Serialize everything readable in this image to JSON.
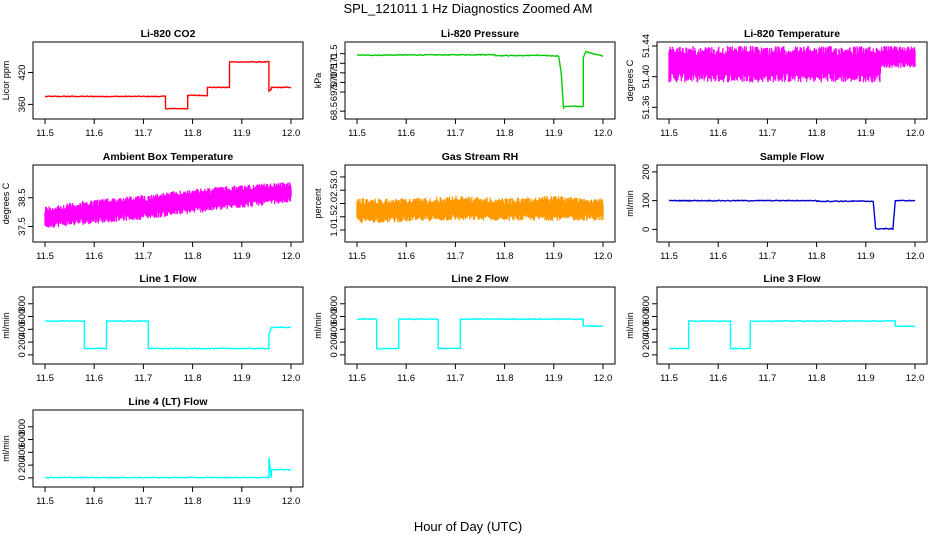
{
  "figure": {
    "title": "SPL_121011  1 Hz Diagnostics Zoomed AM",
    "xlabel": "Hour of Day (UTC)"
  },
  "chart_data": [
    {
      "type": "line",
      "title": "Li-820 CO2",
      "ylabel": "Licor ppm",
      "color": "#ff0000",
      "xlim": [
        11.5,
        12.0
      ],
      "ylim": [
        340,
        470
      ],
      "yticks": [
        "360",
        "420"
      ],
      "xticks": [
        "11.5",
        "11.6",
        "11.7",
        "11.8",
        "11.9",
        "12.0"
      ],
      "series": [
        {
          "x": [
            11.5,
            11.745,
            11.745,
            11.79,
            11.79,
            11.83,
            11.83,
            11.875,
            11.875,
            11.955,
            11.955,
            11.96,
            11.96,
            12.0
          ],
          "y": [
            375,
            375,
            352,
            352,
            377,
            377,
            392,
            392,
            440,
            440,
            385,
            388,
            392,
            392
          ]
        }
      ]
    },
    {
      "type": "line",
      "title": "Li-820 Pressure",
      "ylabel": "kPa",
      "color": "#00cc00",
      "xlim": [
        11.5,
        12.0
      ],
      "ylim": [
        68.3,
        71.9
      ],
      "yticks": [
        "68.5",
        "69.5",
        "70.0",
        "70.5",
        "71.0",
        "71.5"
      ],
      "xticks": [
        "11.5",
        "11.6",
        "11.7",
        "11.8",
        "11.9",
        "12.0"
      ],
      "series": [
        {
          "x": [
            11.5,
            11.78,
            11.78,
            11.85,
            11.85,
            11.91,
            11.915,
            11.92,
            11.92,
            11.96,
            11.96,
            11.965,
            12.0
          ],
          "y": [
            71.42,
            71.45,
            71.4,
            71.4,
            71.42,
            71.38,
            70.5,
            68.6,
            68.75,
            68.75,
            71.3,
            71.6,
            71.38
          ]
        }
      ]
    },
    {
      "type": "area",
      "title": "Li-820 Temperature",
      "ylabel": "degrees C",
      "color": "#ff00ff",
      "xlim": [
        11.5,
        12.0
      ],
      "ylim": [
        51.35,
        51.44
      ],
      "yticks": [
        "51.36",
        "51.40",
        "51.44"
      ],
      "xticks": [
        "11.5",
        "11.6",
        "11.7",
        "11.8",
        "11.9",
        "12.0"
      ],
      "series": [
        {
          "x": [
            11.5,
            11.6,
            11.7,
            11.8,
            11.93,
            11.93,
            12.0
          ],
          "low": [
            51.39,
            51.39,
            51.39,
            51.39,
            51.39,
            51.41,
            51.41
          ],
          "high": [
            51.44,
            51.44,
            51.44,
            51.44,
            51.44,
            51.44,
            51.44
          ]
        }
      ]
    },
    {
      "type": "area",
      "title": "Ambient Box Temperature",
      "ylabel": "degrees C",
      "color": "#ff00ff",
      "xlim": [
        11.5,
        12.0
      ],
      "ylim": [
        37.1,
        39.5
      ],
      "yticks": [
        "37.5",
        "38.5"
      ],
      "xticks": [
        "11.5",
        "11.6",
        "11.7",
        "11.8",
        "11.9",
        "12.0"
      ],
      "series": [
        {
          "x": [
            11.5,
            11.6,
            11.7,
            11.8,
            11.9,
            12.0
          ],
          "low": [
            37.4,
            37.55,
            37.7,
            37.9,
            38.1,
            38.3
          ],
          "high": [
            38.2,
            38.45,
            38.6,
            38.8,
            38.95,
            39.05
          ]
        }
      ]
    },
    {
      "type": "area",
      "title": "Gas Stream RH",
      "ylabel": "percent",
      "color": "#ff9900",
      "xlim": [
        11.5,
        12.0
      ],
      "ylim": [
        0.7,
        3.3
      ],
      "yticks": [
        "1.0",
        "1.5",
        "2.0",
        "2.5",
        "3.0"
      ],
      "xticks": [
        "11.5",
        "11.6",
        "11.7",
        "11.8",
        "11.9",
        "12.0"
      ],
      "series": [
        {
          "x": [
            11.5,
            11.6,
            11.7,
            11.8,
            11.9,
            12.0
          ],
          "low": [
            1.2,
            1.25,
            1.3,
            1.3,
            1.3,
            1.3
          ],
          "high": [
            2.2,
            2.2,
            2.3,
            2.2,
            2.3,
            2.2
          ]
        }
      ]
    },
    {
      "type": "line",
      "title": "Sample Flow",
      "ylabel": "ml/min",
      "color": "#0000cc",
      "xlim": [
        11.5,
        12.0
      ],
      "ylim": [
        -30,
        210
      ],
      "yticks": [
        "0",
        "100",
        "200"
      ],
      "xticks": [
        "11.5",
        "11.6",
        "11.7",
        "11.8",
        "11.9",
        "12.0"
      ],
      "series": [
        {
          "x": [
            11.5,
            11.8,
            11.8,
            11.915,
            11.92,
            11.955,
            11.96,
            12.0
          ],
          "y": [
            100,
            100,
            98,
            98,
            2,
            2,
            100,
            100
          ]
        }
      ]
    },
    {
      "type": "line",
      "title": "Line 1 Flow",
      "ylabel": "ml/min",
      "color": "#00ffff",
      "xlim": [
        11.5,
        12.0
      ],
      "ylim": [
        -80,
        1000
      ],
      "yticks": [
        "0",
        "200",
        "400",
        "600",
        "800"
      ],
      "xticks": [
        "11.5",
        "11.6",
        "11.7",
        "11.8",
        "11.9",
        "12.0"
      ],
      "series": [
        {
          "x": [
            11.5,
            11.58,
            11.58,
            11.625,
            11.625,
            11.71,
            11.71,
            11.955,
            11.955,
            11.96,
            12.0
          ],
          "y": [
            530,
            530,
            100,
            100,
            530,
            530,
            100,
            100,
            320,
            430,
            430
          ]
        }
      ]
    },
    {
      "type": "line",
      "title": "Line 2 Flow",
      "ylabel": "ml/min",
      "color": "#00ffff",
      "xlim": [
        11.5,
        12.0
      ],
      "ylim": [
        -80,
        1000
      ],
      "yticks": [
        "0",
        "200",
        "400",
        "600",
        "800"
      ],
      "xticks": [
        "11.5",
        "11.6",
        "11.7",
        "11.8",
        "11.9",
        "12.0"
      ],
      "series": [
        {
          "x": [
            11.5,
            11.54,
            11.54,
            11.585,
            11.585,
            11.665,
            11.665,
            11.71,
            11.71,
            11.96,
            11.96,
            12.0
          ],
          "y": [
            560,
            560,
            100,
            100,
            560,
            560,
            100,
            100,
            560,
            560,
            450,
            450
          ]
        }
      ]
    },
    {
      "type": "line",
      "title": "Line 3 Flow",
      "ylabel": "ml/min",
      "color": "#00ffff",
      "xlim": [
        11.5,
        12.0
      ],
      "ylim": [
        -80,
        1000
      ],
      "yticks": [
        "0",
        "200",
        "400",
        "600",
        "800"
      ],
      "xticks": [
        "11.5",
        "11.6",
        "11.7",
        "11.8",
        "11.9",
        "12.0"
      ],
      "series": [
        {
          "x": [
            11.5,
            11.54,
            11.54,
            11.625,
            11.625,
            11.665,
            11.665,
            11.96,
            11.96,
            12.0
          ],
          "y": [
            100,
            100,
            530,
            530,
            100,
            100,
            530,
            530,
            450,
            450
          ]
        }
      ]
    },
    {
      "type": "line",
      "title": "Line 4 (LT) Flow",
      "ylabel": "ml/min",
      "color": "#00ffff",
      "xlim": [
        11.5,
        12.0
      ],
      "ylim": [
        -80,
        1000
      ],
      "yticks": [
        "0",
        "200",
        "400",
        "600",
        "800"
      ],
      "xticks": [
        "11.5",
        "11.6",
        "11.7",
        "11.8",
        "11.9",
        "12.0"
      ],
      "series": [
        {
          "x": [
            11.5,
            11.955,
            11.955,
            11.96,
            11.96,
            12.0
          ],
          "y": [
            5,
            5,
            320,
            5,
            130,
            130
          ]
        }
      ]
    }
  ]
}
